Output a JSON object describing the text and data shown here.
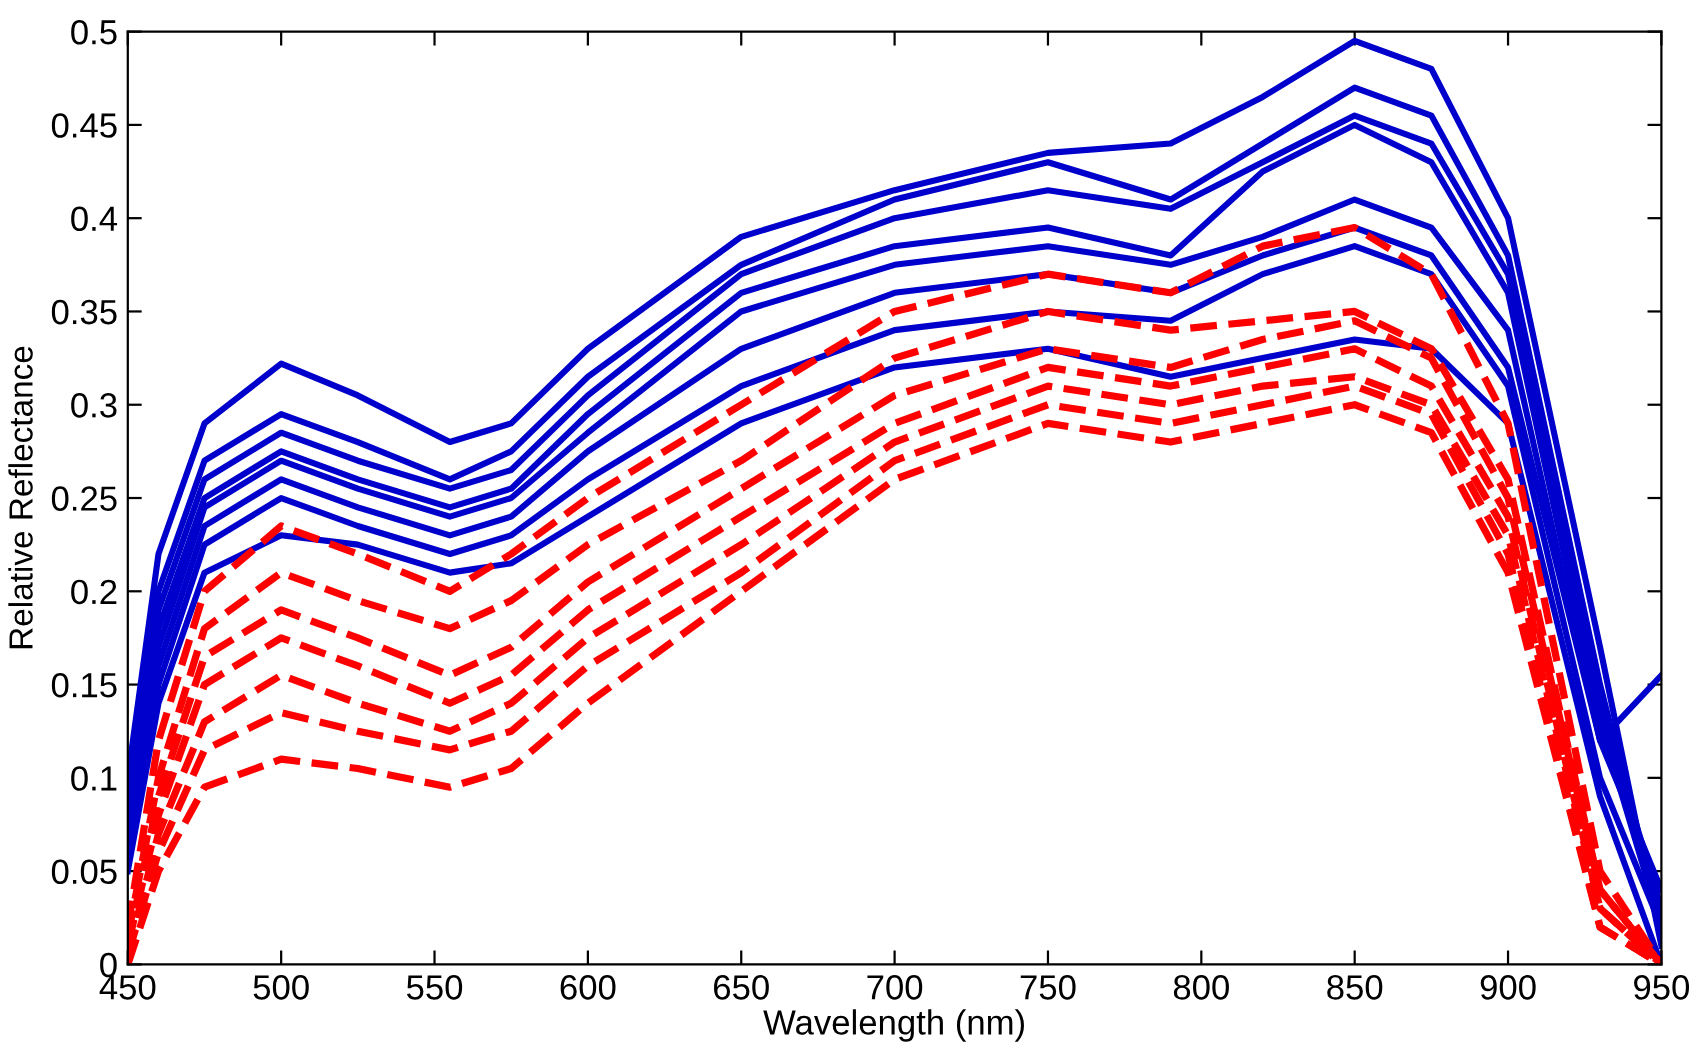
{
  "chart_data": {
    "type": "line",
    "xlabel": "Wavelength (nm)",
    "ylabel": "Relative Reflectance",
    "xlim": [
      450,
      950
    ],
    "ylim": [
      0,
      0.5
    ],
    "xticks": [
      450,
      500,
      550,
      600,
      650,
      700,
      750,
      800,
      850,
      900,
      950
    ],
    "yticks": [
      0,
      0.05,
      0.1,
      0.15,
      0.2,
      0.25,
      0.3,
      0.35,
      0.4,
      0.45,
      0.5
    ],
    "grid": false,
    "marker": "none",
    "x": [
      450,
      460,
      475,
      500,
      525,
      555,
      575,
      600,
      650,
      700,
      750,
      790,
      820,
      850,
      875,
      900,
      930,
      950
    ],
    "series": [
      {
        "color": "#0000cc",
        "line_style": "solid",
        "values": [
          0.1,
          0.22,
          0.29,
          0.322,
          0.305,
          0.28,
          0.29,
          0.33,
          0.39,
          0.415,
          0.435,
          0.44,
          0.465,
          0.495,
          0.48,
          0.4,
          0.17,
          0.01
        ]
      },
      {
        "color": "#0000cc",
        "line_style": "solid",
        "values": [
          0.09,
          0.2,
          0.27,
          0.295,
          0.28,
          0.26,
          0.275,
          0.315,
          0.375,
          0.41,
          0.43,
          0.41,
          0.44,
          0.47,
          0.455,
          0.38,
          0.15,
          0.02
        ]
      },
      {
        "color": "#0000cc",
        "line_style": "solid",
        "values": [
          0.08,
          0.19,
          0.26,
          0.285,
          0.27,
          0.255,
          0.265,
          0.305,
          0.37,
          0.4,
          0.415,
          0.405,
          0.43,
          0.455,
          0.44,
          0.37,
          0.14,
          0.03
        ]
      },
      {
        "color": "#0000cc",
        "line_style": "solid",
        "values": [
          0.08,
          0.18,
          0.25,
          0.275,
          0.26,
          0.245,
          0.255,
          0.295,
          0.36,
          0.385,
          0.395,
          0.38,
          0.425,
          0.45,
          0.43,
          0.36,
          0.13,
          0.02
        ]
      },
      {
        "color": "#0000cc",
        "line_style": "solid",
        "values": [
          0.07,
          0.17,
          0.245,
          0.27,
          0.255,
          0.24,
          0.25,
          0.285,
          0.35,
          0.375,
          0.385,
          0.375,
          0.39,
          0.41,
          0.395,
          0.34,
          0.12,
          0.04
        ]
      },
      {
        "color": "#0000cc",
        "line_style": "solid",
        "values": [
          0.07,
          0.16,
          0.235,
          0.26,
          0.245,
          0.23,
          0.24,
          0.275,
          0.33,
          0.36,
          0.37,
          0.36,
          0.38,
          0.395,
          0.38,
          0.32,
          0.12,
          0.155
        ]
      },
      {
        "color": "#0000cc",
        "line_style": "solid",
        "values": [
          0.06,
          0.15,
          0.225,
          0.25,
          0.235,
          0.22,
          0.23,
          0.26,
          0.31,
          0.34,
          0.35,
          0.345,
          0.37,
          0.385,
          0.37,
          0.31,
          0.1,
          0.02
        ]
      },
      {
        "color": "#0000cc",
        "line_style": "solid",
        "values": [
          0.05,
          0.14,
          0.21,
          0.23,
          0.225,
          0.21,
          0.215,
          0.24,
          0.29,
          0.32,
          0.33,
          0.315,
          0.325,
          0.335,
          0.33,
          0.29,
          0.09,
          0.0
        ]
      },
      {
        "color": "#ff0000",
        "line_style": "dashed",
        "values": [
          0.02,
          0.12,
          0.2,
          0.235,
          0.22,
          0.2,
          0.22,
          0.25,
          0.3,
          0.35,
          0.37,
          0.36,
          0.385,
          0.395,
          0.37,
          0.29,
          0.05,
          0.0
        ]
      },
      {
        "color": "#ff0000",
        "line_style": "dashed",
        "values": [
          0.015,
          0.1,
          0.18,
          0.21,
          0.195,
          0.18,
          0.195,
          0.225,
          0.27,
          0.325,
          0.35,
          0.34,
          0.345,
          0.35,
          0.33,
          0.26,
          0.04,
          0.0
        ]
      },
      {
        "color": "#ff0000",
        "line_style": "dashed",
        "values": [
          0.01,
          0.09,
          0.165,
          0.19,
          0.175,
          0.155,
          0.17,
          0.205,
          0.255,
          0.305,
          0.33,
          0.32,
          0.335,
          0.345,
          0.325,
          0.25,
          0.04,
          0.0
        ]
      },
      {
        "color": "#ff0000",
        "line_style": "dashed",
        "values": [
          0.01,
          0.08,
          0.15,
          0.175,
          0.16,
          0.14,
          0.155,
          0.19,
          0.24,
          0.29,
          0.32,
          0.31,
          0.32,
          0.33,
          0.31,
          0.24,
          0.03,
          0.0
        ]
      },
      {
        "color": "#ff0000",
        "line_style": "dashed",
        "values": [
          0.005,
          0.07,
          0.13,
          0.155,
          0.14,
          0.125,
          0.14,
          0.175,
          0.225,
          0.28,
          0.31,
          0.3,
          0.31,
          0.315,
          0.3,
          0.23,
          0.03,
          0.0
        ]
      },
      {
        "color": "#ff0000",
        "line_style": "dashed",
        "values": [
          0.005,
          0.06,
          0.115,
          0.135,
          0.125,
          0.115,
          0.125,
          0.16,
          0.21,
          0.27,
          0.3,
          0.29,
          0.3,
          0.31,
          0.295,
          0.22,
          0.02,
          0.0
        ]
      },
      {
        "color": "#ff0000",
        "line_style": "dashed",
        "values": [
          0.0,
          0.05,
          0.095,
          0.11,
          0.105,
          0.095,
          0.105,
          0.14,
          0.2,
          0.26,
          0.29,
          0.28,
          0.29,
          0.3,
          0.285,
          0.21,
          0.02,
          0.0
        ]
      }
    ]
  }
}
